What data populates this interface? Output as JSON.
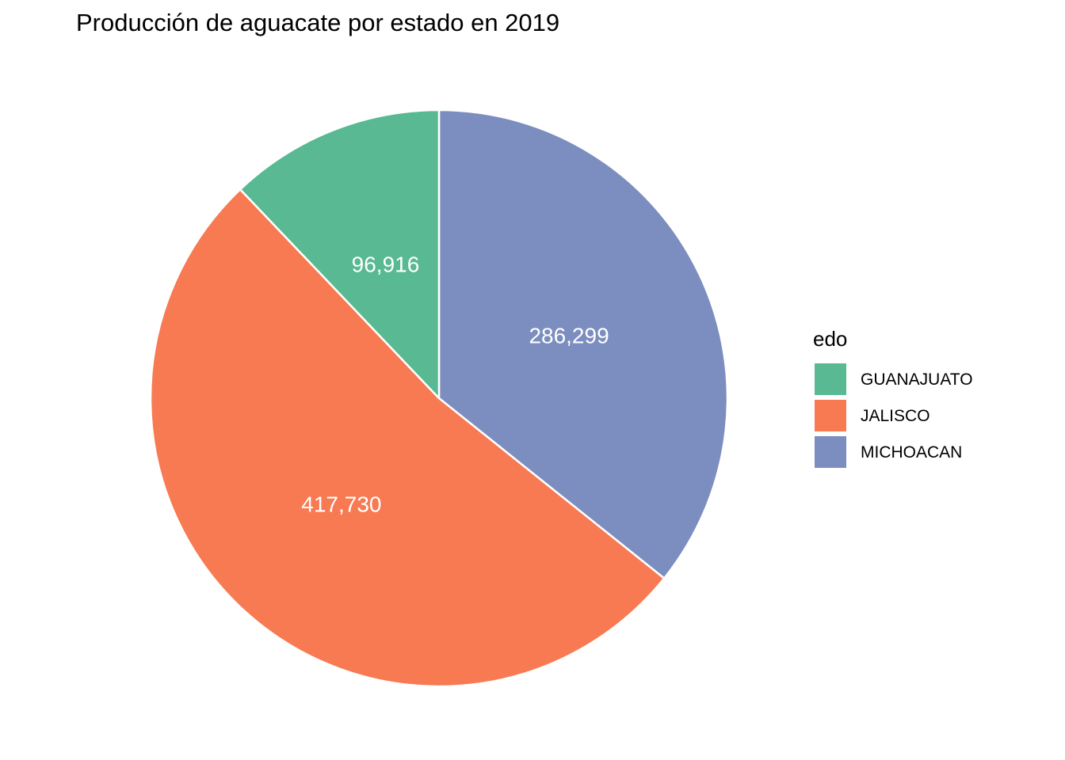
{
  "chart_data": {
    "type": "pie",
    "title": "Producción de aguacate por estado en 2019",
    "legend_title": "edo",
    "legend_position": "right",
    "categories": [
      "GUANAJUATO",
      "JALISCO",
      "MICHOACAN"
    ],
    "values": [
      96916,
      417730,
      286299
    ],
    "value_labels": [
      "96,916",
      "417,730",
      "286,299"
    ],
    "colors": [
      "#58b993",
      "#f87a52",
      "#7c8dbf"
    ]
  }
}
